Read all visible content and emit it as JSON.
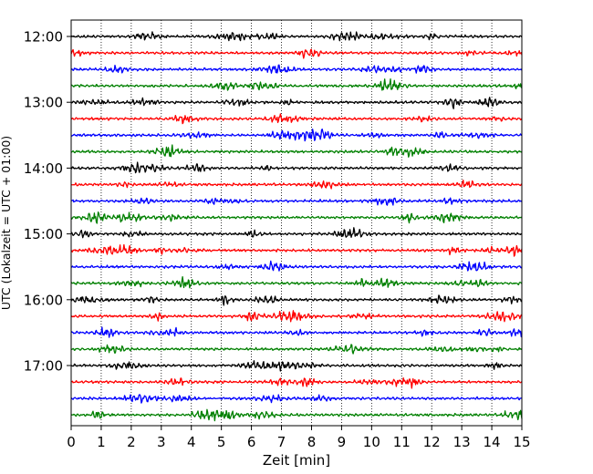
{
  "chart_data": {
    "type": "line",
    "title": "",
    "xlabel": "Zeit  [min]",
    "ylabel": "UTC (Lokalzeit = UTC + 01:00)",
    "xlim": [
      0,
      15
    ],
    "x_ticks": [
      0,
      1,
      2,
      3,
      4,
      5,
      6,
      7,
      8,
      9,
      10,
      11,
      12,
      13,
      14,
      15
    ],
    "grid": "vertical dotted",
    "y_tick_labels": [
      "12:00",
      "13:00",
      "14:00",
      "15:00",
      "16:00",
      "17:00"
    ],
    "trace_colors": [
      "#000000",
      "#ff0000",
      "#0000ff",
      "#008000"
    ],
    "series": [
      {
        "start": "12:00",
        "color": "#000000"
      },
      {
        "start": "12:15",
        "color": "#ff0000"
      },
      {
        "start": "12:30",
        "color": "#0000ff"
      },
      {
        "start": "12:45",
        "color": "#008000"
      },
      {
        "start": "13:00",
        "color": "#000000"
      },
      {
        "start": "13:15",
        "color": "#ff0000"
      },
      {
        "start": "13:30",
        "color": "#0000ff"
      },
      {
        "start": "13:45",
        "color": "#008000"
      },
      {
        "start": "14:00",
        "color": "#000000"
      },
      {
        "start": "14:15",
        "color": "#ff0000"
      },
      {
        "start": "14:30",
        "color": "#0000ff"
      },
      {
        "start": "14:45",
        "color": "#008000"
      },
      {
        "start": "15:00",
        "color": "#000000"
      },
      {
        "start": "15:15",
        "color": "#ff0000"
      },
      {
        "start": "15:30",
        "color": "#0000ff"
      },
      {
        "start": "15:45",
        "color": "#008000"
      },
      {
        "start": "16:00",
        "color": "#000000"
      },
      {
        "start": "16:15",
        "color": "#ff0000"
      },
      {
        "start": "16:30",
        "color": "#0000ff"
      },
      {
        "start": "16:45",
        "color": "#008000"
      },
      {
        "start": "17:00",
        "color": "#000000"
      },
      {
        "start": "17:15",
        "color": "#ff0000"
      },
      {
        "start": "17:30",
        "color": "#0000ff"
      },
      {
        "start": "17:45",
        "color": "#008000"
      }
    ]
  }
}
